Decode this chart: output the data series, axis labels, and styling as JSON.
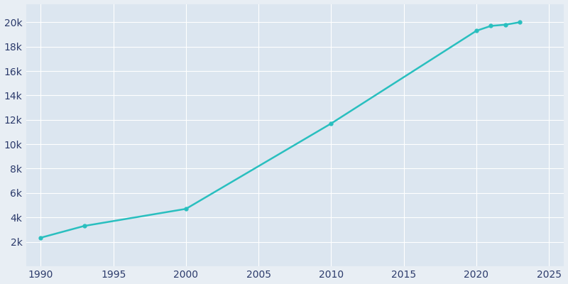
{
  "years": [
    1990,
    1993,
    2000,
    2010,
    2020,
    2021,
    2022,
    2023
  ],
  "population": [
    2335,
    3300,
    4700,
    11700,
    19300,
    19700,
    19800,
    20000
  ],
  "line_color": "#29BFBF",
  "bg_color": "#E8EEF4",
  "plot_bg_color": "#DCE6F0",
  "tick_color": "#2B3A6B",
  "grid_color": "#FFFFFF",
  "ylim": [
    0,
    21500
  ],
  "xlim": [
    1989,
    2026
  ],
  "ytick_values": [
    2000,
    4000,
    6000,
    8000,
    10000,
    12000,
    14000,
    16000,
    18000,
    20000
  ],
  "xtick_values": [
    1990,
    1995,
    2000,
    2005,
    2010,
    2015,
    2020,
    2025
  ],
  "marker_years": [
    1990,
    1993,
    2000,
    2010,
    2020,
    2021,
    2022,
    2023
  ],
  "marker_values": [
    2335,
    3300,
    4700,
    11700,
    19300,
    19700,
    19800,
    20000
  ]
}
